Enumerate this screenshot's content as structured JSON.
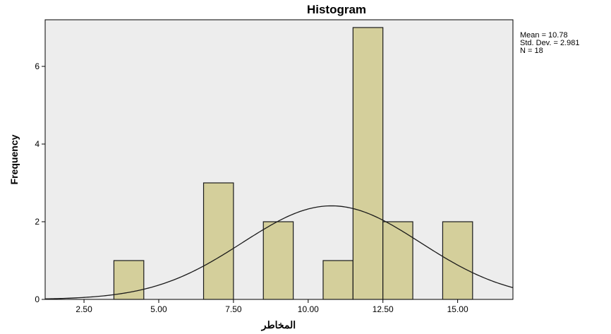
{
  "chart_data": {
    "type": "bar",
    "title": "Histogram",
    "xlabel": "المخاطر",
    "ylabel": "Frequency",
    "xlim": [
      1.2,
      16.85
    ],
    "ylim": [
      0,
      7.2
    ],
    "x_ticks": [
      2.5,
      5.0,
      7.5,
      10.0,
      12.5,
      15.0
    ],
    "x_tick_labels": [
      "2.50",
      "5.00",
      "7.50",
      "10.00",
      "12.50",
      "15.00"
    ],
    "y_ticks": [
      0,
      2,
      4,
      6
    ],
    "y_tick_labels": [
      "0",
      "2",
      "4",
      "6"
    ],
    "bin_width": 1,
    "bins": [
      {
        "x0": 3.5,
        "x1": 4.5,
        "count": 1
      },
      {
        "x0": 6.5,
        "x1": 7.5,
        "count": 3
      },
      {
        "x0": 8.5,
        "x1": 9.5,
        "count": 2
      },
      {
        "x0": 10.5,
        "x1": 11.5,
        "count": 1
      },
      {
        "x0": 11.5,
        "x1": 12.5,
        "count": 7
      },
      {
        "x0": 12.5,
        "x1": 13.5,
        "count": 2
      },
      {
        "x0": 14.5,
        "x1": 15.5,
        "count": 2
      }
    ],
    "normal_curve": {
      "mean": 10.78,
      "sd": 2.981,
      "n": 18
    },
    "stats_text": [
      "Mean = 10.78",
      "Std. Dev. = 2.981",
      "N = 18"
    ],
    "grid": false,
    "legend": "top-right"
  },
  "colors": {
    "plot_background": "#ededed",
    "bar_fill": "#d4cf9b",
    "bar_stroke": "#1a1a1a",
    "curve": "#1a1a1a",
    "axis": "#000000"
  }
}
